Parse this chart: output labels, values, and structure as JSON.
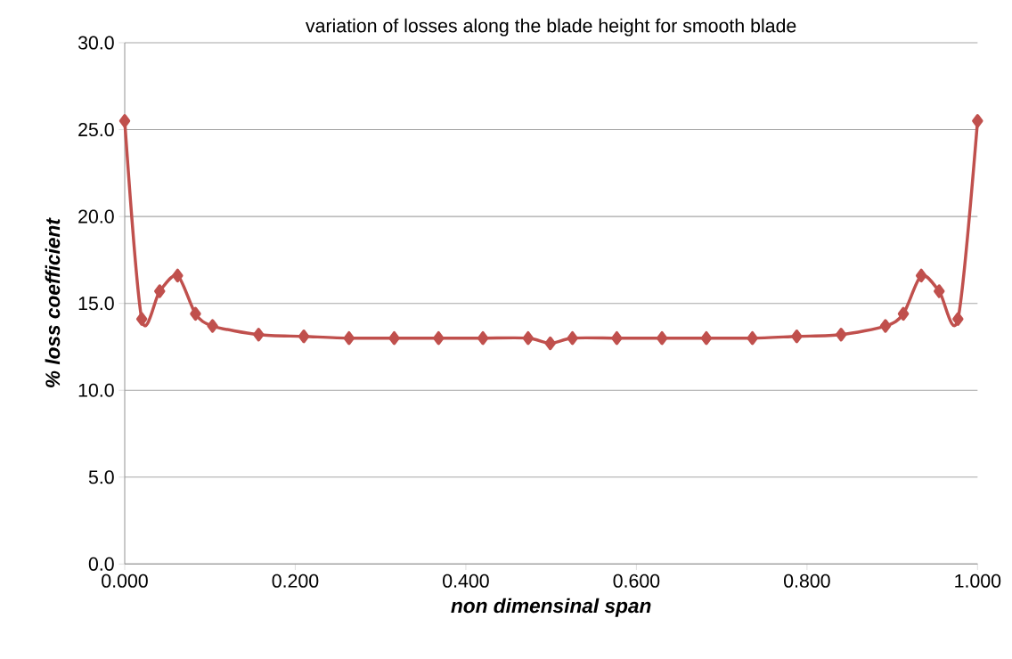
{
  "chart_data": {
    "type": "line",
    "title": "variation of losses along the blade height for smooth blade",
    "xlabel": "non dimensinal span",
    "ylabel": "% loss coefficient",
    "x": [
      0,
      0.02,
      0.041,
      0.062,
      0.083,
      0.103,
      0.157,
      0.21,
      0.263,
      0.316,
      0.368,
      0.42,
      0.473,
      0.499,
      0.525,
      0.577,
      0.63,
      0.682,
      0.736,
      0.788,
      0.84,
      0.892,
      0.913,
      0.934,
      0.955,
      0.977,
      1.0
    ],
    "series": [
      {
        "color": "#c0504d",
        "values": [
          25.5,
          14.1,
          15.7,
          16.6,
          14.4,
          13.7,
          13.2,
          13.1,
          13.0,
          13.0,
          13.0,
          13.0,
          13.0,
          12.7,
          13.0,
          13.0,
          13.0,
          13.0,
          13.0,
          13.1,
          13.2,
          13.7,
          14.4,
          16.6,
          15.7,
          14.1,
          25.5
        ]
      }
    ],
    "xlim": [
      0,
      1
    ],
    "ylim": [
      0,
      30
    ],
    "xticks": [
      {
        "value": 0,
        "label": "0.000"
      },
      {
        "value": 0.2,
        "label": "0.200"
      },
      {
        "value": 0.4,
        "label": "0.400"
      },
      {
        "value": 0.6,
        "label": "0.600"
      },
      {
        "value": 0.8,
        "label": "0.800"
      },
      {
        "value": 1,
        "label": "1.000"
      }
    ],
    "yticks": [
      {
        "value": 0,
        "label": "0.0"
      },
      {
        "value": 5,
        "label": "5.0"
      },
      {
        "value": 10,
        "label": "10.0"
      },
      {
        "value": 15,
        "label": "15.0"
      },
      {
        "value": 20,
        "label": "20.0"
      },
      {
        "value": 25,
        "label": "25.0"
      },
      {
        "value": 30,
        "label": "30.0"
      }
    ],
    "grid": "y",
    "marker": "diamond",
    "line_style": "solid"
  }
}
